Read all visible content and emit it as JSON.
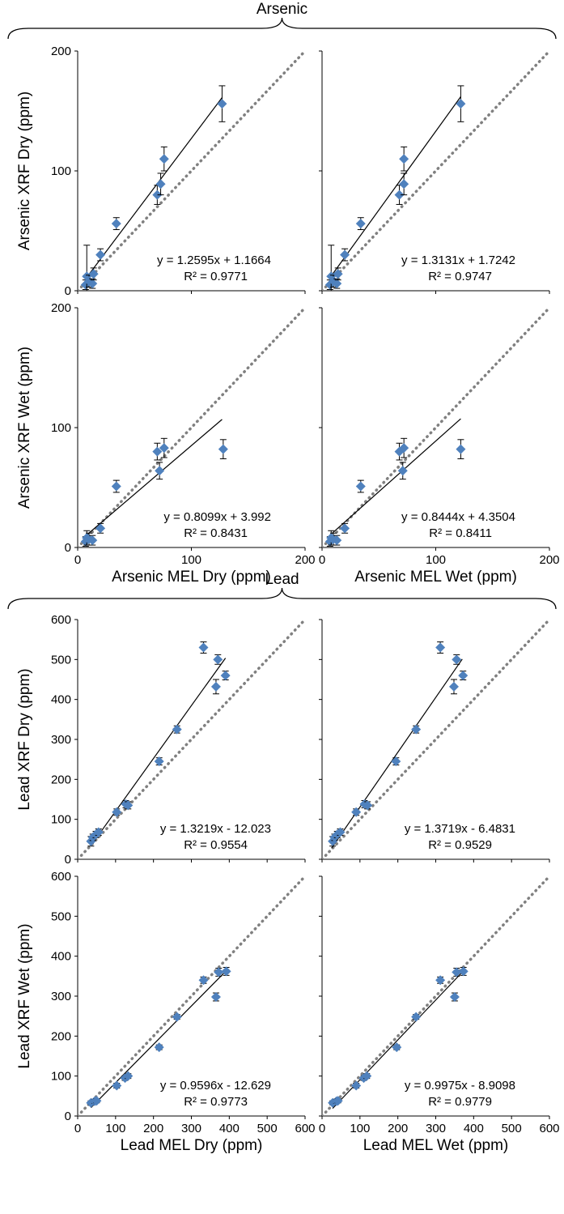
{
  "chart_data": {
    "type": "scatter",
    "groups": [
      {
        "name": "Arsenic"
      },
      {
        "name": "Lead"
      }
    ],
    "panels": [
      {
        "id": "as-dry-dry",
        "group": 0,
        "row": 0,
        "col": 0,
        "ylabel": "Arsenic XRF Dry (ppm)",
        "xlabel": "",
        "xlim": [
          0,
          200
        ],
        "ylim": [
          0,
          200
        ],
        "yticks": [
          "0",
          "100",
          "200"
        ],
        "xticks": [],
        "equation": "y = 1.2595x + 1.1664",
        "r2": "R² = 0.9771",
        "fit": {
          "slope": 1.2595,
          "intercept": 1.1664,
          "x_range": [
            8,
            127
          ]
        },
        "points": [
          {
            "x": 7,
            "y": 5,
            "err": 4
          },
          {
            "x": 8,
            "y": 12,
            "err": 26
          },
          {
            "x": 10,
            "y": 8,
            "err": 5
          },
          {
            "x": 13,
            "y": 6,
            "err": 4
          },
          {
            "x": 14,
            "y": 14,
            "err": 5
          },
          {
            "x": 20,
            "y": 30,
            "err": 5
          },
          {
            "x": 34,
            "y": 56,
            "err": 5
          },
          {
            "x": 70,
            "y": 80,
            "err": 8
          },
          {
            "x": 73,
            "y": 89,
            "err": 9
          },
          {
            "x": 76,
            "y": 110,
            "err": 10
          },
          {
            "x": 127,
            "y": 156,
            "err": 15
          }
        ]
      },
      {
        "id": "as-dry-wet",
        "group": 0,
        "row": 0,
        "col": 1,
        "ylabel": "",
        "xlabel": "",
        "xlim": [
          0,
          200
        ],
        "ylim": [
          0,
          200
        ],
        "yticks": [],
        "xticks": [],
        "equation": "y = 1.3131x + 1.7242",
        "r2": "R² = 0.9747",
        "fit": {
          "slope": 1.3131,
          "intercept": 1.7242,
          "x_range": [
            7,
            122
          ]
        },
        "points": [
          {
            "x": 7,
            "y": 5,
            "err": 4
          },
          {
            "x": 8,
            "y": 12,
            "err": 26
          },
          {
            "x": 10,
            "y": 8,
            "err": 5
          },
          {
            "x": 13,
            "y": 6,
            "err": 4
          },
          {
            "x": 14,
            "y": 14,
            "err": 5
          },
          {
            "x": 20,
            "y": 30,
            "err": 5
          },
          {
            "x": 34,
            "y": 56,
            "err": 5
          },
          {
            "x": 68,
            "y": 80,
            "err": 8
          },
          {
            "x": 72,
            "y": 89,
            "err": 9
          },
          {
            "x": 72,
            "y": 110,
            "err": 10
          },
          {
            "x": 122,
            "y": 156,
            "err": 15
          }
        ]
      },
      {
        "id": "as-wet-dry",
        "group": 0,
        "row": 1,
        "col": 0,
        "ylabel": "Arsenic XRF Wet (ppm)",
        "xlabel": "Arsenic MEL Dry (ppm)",
        "xlim": [
          0,
          200
        ],
        "ylim": [
          0,
          200
        ],
        "yticks": [
          "0",
          "100",
          "200"
        ],
        "xticks": [
          "0",
          "100",
          "200"
        ],
        "equation": "y = 0.8099x + 3.992",
        "r2": "R² = 0.8431",
        "fit": {
          "slope": 0.8099,
          "intercept": 3.992,
          "x_range": [
            8,
            127
          ]
        },
        "points": [
          {
            "x": 7,
            "y": 5,
            "err": 4
          },
          {
            "x": 8,
            "y": 8,
            "err": 6
          },
          {
            "x": 10,
            "y": 7,
            "err": 5
          },
          {
            "x": 13,
            "y": 6,
            "err": 4
          },
          {
            "x": 20,
            "y": 16,
            "err": 4
          },
          {
            "x": 34,
            "y": 51,
            "err": 5
          },
          {
            "x": 70,
            "y": 80,
            "err": 7
          },
          {
            "x": 72,
            "y": 64,
            "err": 7
          },
          {
            "x": 76,
            "y": 83,
            "err": 8
          },
          {
            "x": 128,
            "y": 82,
            "err": 8
          }
        ]
      },
      {
        "id": "as-wet-wet",
        "group": 0,
        "row": 1,
        "col": 1,
        "ylabel": "",
        "xlabel": "Arsenic MEL Wet (ppm)",
        "xlim": [
          0,
          200
        ],
        "ylim": [
          0,
          200
        ],
        "yticks": [],
        "xticks": [
          "0",
          "100",
          "200"
        ],
        "equation": "y = 0.8444x + 4.3504",
        "r2": "R² = 0.8411",
        "fit": {
          "slope": 0.8444,
          "intercept": 4.3504,
          "x_range": [
            7,
            122
          ]
        },
        "points": [
          {
            "x": 7,
            "y": 5,
            "err": 4
          },
          {
            "x": 8,
            "y": 8,
            "err": 6
          },
          {
            "x": 10,
            "y": 7,
            "err": 5
          },
          {
            "x": 13,
            "y": 6,
            "err": 4
          },
          {
            "x": 20,
            "y": 16,
            "err": 4
          },
          {
            "x": 34,
            "y": 51,
            "err": 5
          },
          {
            "x": 68,
            "y": 80,
            "err": 7
          },
          {
            "x": 71,
            "y": 64,
            "err": 7
          },
          {
            "x": 72,
            "y": 83,
            "err": 8
          },
          {
            "x": 122,
            "y": 82,
            "err": 8
          }
        ]
      },
      {
        "id": "pb-dry-dry",
        "group": 1,
        "row": 0,
        "col": 0,
        "ylabel": "Lead XRF Dry (ppm)",
        "xlabel": "",
        "xlim": [
          0,
          600
        ],
        "ylim": [
          0,
          600
        ],
        "yticks": [
          "0",
          "100",
          "200",
          "300",
          "400",
          "500",
          "600"
        ],
        "xticks": [],
        "equation": "y = 1.3219x - 12.023",
        "r2": "R² = 0.9554",
        "fit": {
          "slope": 1.3219,
          "intercept": -12.023,
          "x_range": [
            35,
            390
          ]
        },
        "points": [
          {
            "x": 35,
            "y": 45,
            "err": 12
          },
          {
            "x": 40,
            "y": 55,
            "err": 8
          },
          {
            "x": 48,
            "y": 62,
            "err": 8
          },
          {
            "x": 55,
            "y": 68,
            "err": 8
          },
          {
            "x": 103,
            "y": 118,
            "err": 8
          },
          {
            "x": 127,
            "y": 138,
            "err": 9
          },
          {
            "x": 133,
            "y": 135,
            "err": 9
          },
          {
            "x": 215,
            "y": 245,
            "err": 9
          },
          {
            "x": 262,
            "y": 325,
            "err": 9
          },
          {
            "x": 332,
            "y": 530,
            "err": 14
          },
          {
            "x": 365,
            "y": 432,
            "err": 18
          },
          {
            "x": 370,
            "y": 500,
            "err": 12
          },
          {
            "x": 390,
            "y": 460,
            "err": 11
          }
        ]
      },
      {
        "id": "pb-dry-wet",
        "group": 1,
        "row": 0,
        "col": 1,
        "ylabel": "",
        "xlabel": "",
        "xlim": [
          0,
          600
        ],
        "ylim": [
          0,
          600
        ],
        "yticks": [],
        "xticks": [],
        "equation": "y = 1.3719x - 6.4831",
        "r2": "R² = 0.9529",
        "fit": {
          "slope": 1.3719,
          "intercept": -6.4831,
          "x_range": [
            25,
            370
          ]
        },
        "points": [
          {
            "x": 28,
            "y": 45,
            "err": 12
          },
          {
            "x": 33,
            "y": 55,
            "err": 8
          },
          {
            "x": 40,
            "y": 62,
            "err": 8
          },
          {
            "x": 48,
            "y": 68,
            "err": 8
          },
          {
            "x": 90,
            "y": 118,
            "err": 8
          },
          {
            "x": 112,
            "y": 138,
            "err": 9
          },
          {
            "x": 120,
            "y": 135,
            "err": 9
          },
          {
            "x": 195,
            "y": 245,
            "err": 9
          },
          {
            "x": 248,
            "y": 325,
            "err": 9
          },
          {
            "x": 312,
            "y": 530,
            "err": 14
          },
          {
            "x": 348,
            "y": 432,
            "err": 18
          },
          {
            "x": 355,
            "y": 500,
            "err": 12
          },
          {
            "x": 372,
            "y": 460,
            "err": 11
          }
        ]
      },
      {
        "id": "pb-wet-dry",
        "group": 1,
        "row": 1,
        "col": 0,
        "ylabel": "Lead XRF Wet (ppm)",
        "xlabel": "Lead MEL Dry (ppm)",
        "xlim": [
          0,
          600
        ],
        "ylim": [
          0,
          600
        ],
        "yticks": [
          "0",
          "100",
          "200",
          "300",
          "400",
          "500",
          "600"
        ],
        "xticks": [
          "0",
          "100",
          "200",
          "300",
          "400",
          "500",
          "600"
        ],
        "equation": "y = 0.9596x - 12.629",
        "r2": "R² = 0.9773",
        "fit": {
          "slope": 0.9596,
          "intercept": -12.629,
          "x_range": [
            35,
            390
          ]
        },
        "points": [
          {
            "x": 35,
            "y": 33,
            "err": 5
          },
          {
            "x": 45,
            "y": 37,
            "err": 5
          },
          {
            "x": 50,
            "y": 38,
            "err": 5
          },
          {
            "x": 103,
            "y": 76,
            "err": 6
          },
          {
            "x": 125,
            "y": 95,
            "err": 6
          },
          {
            "x": 133,
            "y": 100,
            "err": 6
          },
          {
            "x": 215,
            "y": 172,
            "err": 6
          },
          {
            "x": 262,
            "y": 248,
            "err": 6
          },
          {
            "x": 332,
            "y": 340,
            "err": 8
          },
          {
            "x": 365,
            "y": 298,
            "err": 10
          },
          {
            "x": 372,
            "y": 360,
            "err": 10
          },
          {
            "x": 392,
            "y": 362,
            "err": 10
          }
        ]
      },
      {
        "id": "pb-wet-wet",
        "group": 1,
        "row": 1,
        "col": 1,
        "ylabel": "",
        "xlabel": "Lead MEL Wet (ppm)",
        "xlim": [
          0,
          600
        ],
        "ylim": [
          0,
          600
        ],
        "yticks": [],
        "xticks": [
          "0",
          "100",
          "200",
          "300",
          "400",
          "500",
          "600"
        ],
        "equation": "y = 0.9975x - 8.9098",
        "r2": "R² = 0.9779",
        "fit": {
          "slope": 0.9975,
          "intercept": -8.9098,
          "x_range": [
            28,
            375
          ]
        },
        "points": [
          {
            "x": 28,
            "y": 33,
            "err": 5
          },
          {
            "x": 38,
            "y": 37,
            "err": 5
          },
          {
            "x": 42,
            "y": 38,
            "err": 5
          },
          {
            "x": 90,
            "y": 76,
            "err": 6
          },
          {
            "x": 110,
            "y": 95,
            "err": 6
          },
          {
            "x": 118,
            "y": 100,
            "err": 6
          },
          {
            "x": 197,
            "y": 172,
            "err": 6
          },
          {
            "x": 248,
            "y": 248,
            "err": 6
          },
          {
            "x": 312,
            "y": 340,
            "err": 8
          },
          {
            "x": 350,
            "y": 298,
            "err": 10
          },
          {
            "x": 355,
            "y": 360,
            "err": 10
          },
          {
            "x": 373,
            "y": 362,
            "err": 10
          }
        ]
      }
    ],
    "colors": {
      "marker": "#4f81bd",
      "fit_line": "#000000",
      "identity_line": "#808080",
      "axis": "#000000"
    }
  }
}
